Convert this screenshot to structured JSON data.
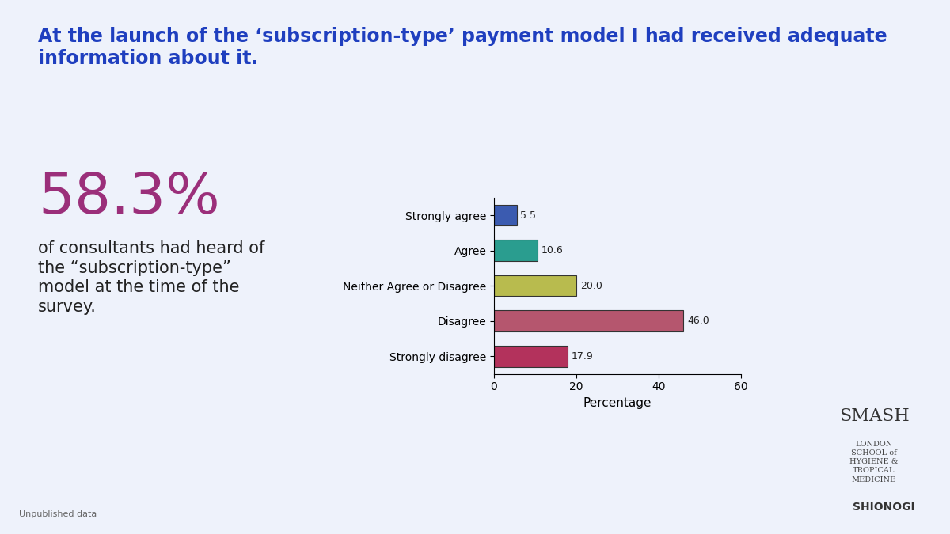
{
  "chart_data": {
    "type": "bar",
    "orientation": "horizontal",
    "title": "At the launch of the ‘subscription-type’ payment model I had received adequate information about it.",
    "categories": [
      "Strongly agree",
      "Agree",
      "Neither Agree or Disagree",
      "Disagree",
      "Strongly disagree"
    ],
    "values": [
      5.5,
      10.6,
      20.0,
      46.0,
      17.9
    ],
    "value_labels": [
      "5.5",
      "10.6",
      "20.0",
      "46.0",
      "17.9"
    ],
    "colors": [
      "#3b5bb0",
      "#2a9d8f",
      "#b8bb4e",
      "#b5566e",
      "#b3325c"
    ],
    "data_labels": true,
    "x_label": "Percentage",
    "xlim": [
      0,
      60
    ],
    "xticks": [
      0,
      20,
      40,
      60
    ],
    "annotations": [
      "58.3%",
      "of consultants had heard of the “subscription-type” model at the time of the survey.",
      "SMASH",
      "LONDON SCHOOL of HYGIENE & TROPICAL MEDICINE",
      "SHIONOGI",
      "Unpublished data"
    ]
  }
}
